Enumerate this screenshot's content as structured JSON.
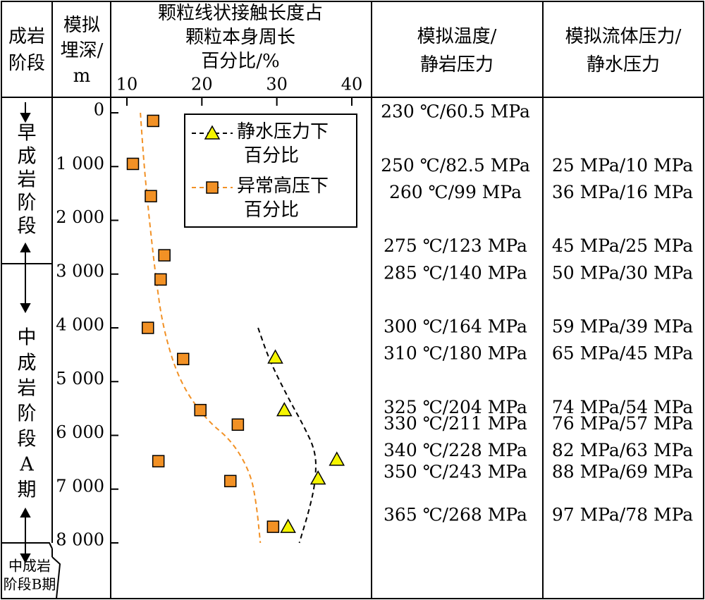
{
  "colors": {
    "normal_series": "#F5F500",
    "overpressure_series": "#F29125",
    "overpressure_curve": "#F29125",
    "normal_curve": "#000000"
  },
  "headers": {
    "stage_lines": [
      "成岩",
      "阶段"
    ],
    "depth_lines": [
      "模拟",
      "埋深/",
      "m"
    ],
    "ratio_lines": [
      "颗粒线状接触长度占",
      "颗粒本身周长",
      "百分比/%"
    ],
    "temp_lines": [
      "模拟温度/",
      "静岩压力"
    ],
    "fluid_lines": [
      "模拟流体压力/",
      "静水压力"
    ]
  },
  "stages": [
    {
      "label_chars": [
        "早",
        "成",
        "岩",
        "阶",
        "段"
      ]
    },
    {
      "label_chars": [
        "中",
        "成",
        "岩",
        "阶",
        "段",
        "A",
        "期"
      ]
    },
    {
      "label_lines": [
        "中成岩",
        "阶段B期"
      ]
    }
  ],
  "chart_data": {
    "type": "scatter",
    "x_axis": {
      "range": [
        10,
        40
      ],
      "ticks": [
        "10",
        "20",
        "30",
        "40"
      ]
    },
    "y_axis": {
      "range": [
        0,
        8000
      ],
      "ticks": [
        "0",
        "1 000",
        "2 000",
        "3 000",
        "4 000",
        "5 000",
        "6 000",
        "7 000",
        "8 000"
      ],
      "inverted": true
    },
    "legend": {
      "placement": "top-right"
    },
    "series": [
      {
        "name_lines": [
          "静水压力下",
          "百分比"
        ],
        "marker": "triangle",
        "points": [
          [
            29.8,
            4550
          ],
          [
            31.0,
            5530
          ],
          [
            35.5,
            6800
          ],
          [
            38.0,
            6450
          ],
          [
            31.5,
            7700
          ]
        ]
      },
      {
        "name_lines": [
          "异常高压下",
          "百分比"
        ],
        "marker": "square",
        "points": [
          [
            13.5,
            150
          ],
          [
            10.8,
            950
          ],
          [
            13.2,
            1550
          ],
          [
            15.0,
            2650
          ],
          [
            14.5,
            3100
          ],
          [
            12.8,
            4000
          ],
          [
            17.5,
            4580
          ],
          [
            19.8,
            5530
          ],
          [
            24.8,
            5800
          ],
          [
            14.2,
            6480
          ],
          [
            23.8,
            6850
          ],
          [
            29.5,
            7700
          ]
        ]
      }
    ],
    "curves": [
      {
        "series": 0,
        "style": "dashed",
        "points": [
          [
            27.5,
            4000
          ],
          [
            29.0,
            4600
          ],
          [
            31.5,
            5300
          ],
          [
            33.5,
            5800
          ],
          [
            35.2,
            6300
          ],
          [
            35.2,
            6800
          ],
          [
            34.5,
            7300
          ],
          [
            33.0,
            8000
          ]
        ]
      },
      {
        "series": 1,
        "style": "dashed",
        "points": [
          [
            11.8,
            0
          ],
          [
            12.3,
            1000
          ],
          [
            13.0,
            2000
          ],
          [
            13.8,
            3000
          ],
          [
            14.8,
            4000
          ],
          [
            17.0,
            5000
          ],
          [
            20.5,
            5700
          ],
          [
            24.0,
            6100
          ],
          [
            26.5,
            6700
          ],
          [
            27.3,
            7300
          ],
          [
            27.8,
            8000
          ]
        ]
      }
    ]
  },
  "rows": [
    {
      "depth": 0,
      "temp": "230 ℃/60.5 MPa",
      "fluid": ""
    },
    {
      "depth": 1000,
      "temp": "250 ℃/82.5 MPa",
      "fluid": "25 MPa/10 MPa"
    },
    {
      "depth": 1500,
      "temp": "260 ℃/99 MPa",
      "fluid": "36 MPa/16 MPa"
    },
    {
      "depth": 2500,
      "temp": "275 ℃/123 MPa",
      "fluid": "45 MPa/25 MPa"
    },
    {
      "depth": 3000,
      "temp": "285 ℃/140 MPa",
      "fluid": "50 MPa/30 MPa"
    },
    {
      "depth": 4000,
      "temp": "300 ℃/164 MPa",
      "fluid": "59 MPa/39 MPa"
    },
    {
      "depth": 4500,
      "temp": "310 ℃/180 MPa",
      "fluid": "65 MPa/45 MPa"
    },
    {
      "depth": 5500,
      "temp": "325 ℃/204 MPa",
      "fluid": "74 MPa/54 MPa"
    },
    {
      "depth": 5800,
      "temp": "330 ℃/211 MPa",
      "fluid": "76 MPa/57 MPa"
    },
    {
      "depth": 6300,
      "temp": "340 ℃/228 MPa",
      "fluid": "82 MPa/63 MPa"
    },
    {
      "depth": 6700,
      "temp": "350 ℃/243 MPa",
      "fluid": "88 MPa/69 MPa"
    },
    {
      "depth": 7500,
      "temp": "365 ℃/268 MPa",
      "fluid": "97 MPa/78 MPa"
    }
  ]
}
